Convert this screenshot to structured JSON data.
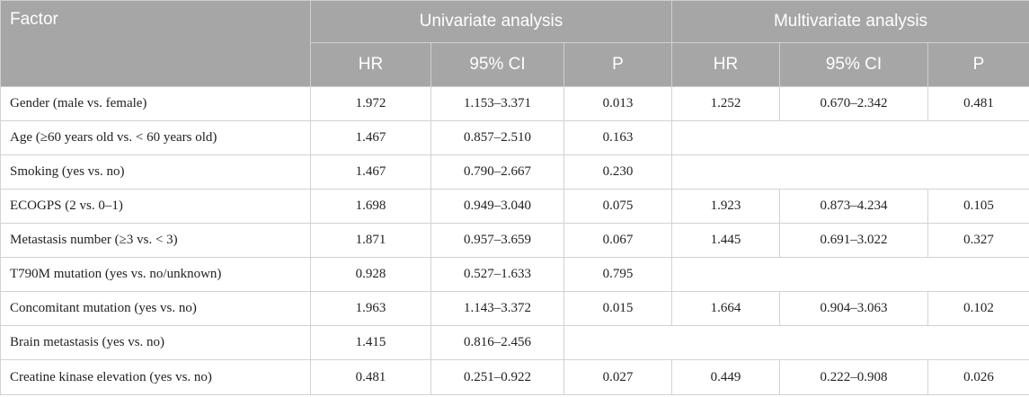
{
  "header": {
    "factor": "Factor",
    "univariate": "Univariate analysis",
    "multivariate": "Multivariate analysis",
    "hr": "HR",
    "ci": "95% CI",
    "p": "P"
  },
  "rows": [
    {
      "factor": "Gender (male vs. female)",
      "u_hr": "1.972",
      "u_ci": "1.153–3.371",
      "u_p": "0.013",
      "m_hr": "1.252",
      "m_ci": "0.670–2.342",
      "m_p": "0.481"
    },
    {
      "factor": "Age (≥60 years old vs. < 60 years old)",
      "u_hr": "1.467",
      "u_ci": "0.857–2.510",
      "u_p": "0.163",
      "m_hr": "",
      "m_ci": "",
      "m_p": ""
    },
    {
      "factor": "Smoking (yes vs. no)",
      "u_hr": "1.467",
      "u_ci": "0.790–2.667",
      "u_p": "0.230",
      "m_hr": "",
      "m_ci": "",
      "m_p": ""
    },
    {
      "factor": "ECOGPS (2 vs. 0–1)",
      "u_hr": "1.698",
      "u_ci": "0.949–3.040",
      "u_p": "0.075",
      "m_hr": "1.923",
      "m_ci": "0.873–4.234",
      "m_p": "0.105"
    },
    {
      "factor": "Metastasis number (≥3 vs. < 3)",
      "u_hr": "1.871",
      "u_ci": "0.957–3.659",
      "u_p": "0.067",
      "m_hr": "1.445",
      "m_ci": "0.691–3.022",
      "m_p": "0.327"
    },
    {
      "factor": "T790M mutation (yes vs. no/unknown)",
      "u_hr": "0.928",
      "u_ci": "0.527–1.633",
      "u_p": "0.795",
      "m_hr": "",
      "m_ci": "",
      "m_p": ""
    },
    {
      "factor": "Concomitant mutation (yes vs. no)",
      "u_hr": "1.963",
      "u_ci": "1.143–3.372",
      "u_p": "0.015",
      "m_hr": "1.664",
      "m_ci": "0.904–3.063",
      "m_p": "0.102"
    },
    {
      "factor": "Brain metastasis (yes vs. no)",
      "u_hr": "1.415",
      "u_ci": "0.816–2.456",
      "u_p": "",
      "m_hr": "",
      "m_ci": "",
      "m_p": ""
    },
    {
      "factor": "Creatine kinase elevation (yes vs. no)",
      "u_hr": "0.481",
      "u_ci": "0.251–0.922",
      "u_p": "0.027",
      "m_hr": "0.449",
      "m_ci": "0.222–0.908",
      "m_p": "0.026"
    }
  ]
}
